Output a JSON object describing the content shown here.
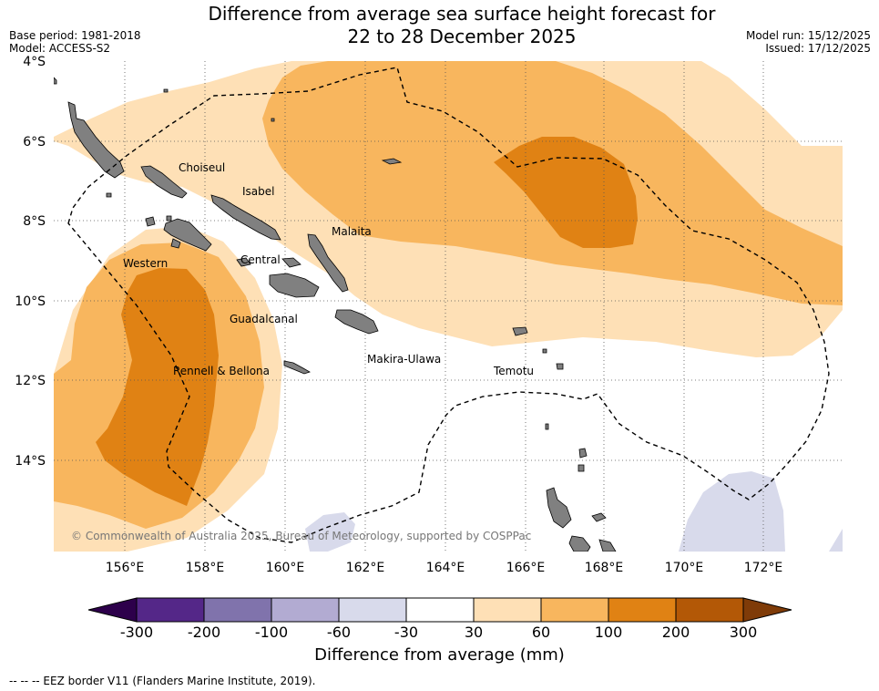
{
  "title": {
    "line1": "Difference from average sea surface height forecast for",
    "line2": "22 to 28 December 2025"
  },
  "meta": {
    "base_period": "Base period: 1981-2018",
    "model": "Model: ACCESS-S2",
    "model_run": "Model run: 15/12/2025",
    "issued": "Issued: 17/12/2025"
  },
  "map": {
    "lat_labels": [
      "4°S",
      "6°S",
      "8°S",
      "10°S",
      "12°S",
      "14°S"
    ],
    "lon_labels": [
      "156°E",
      "158°E",
      "160°E",
      "162°E",
      "164°E",
      "166°E",
      "168°E",
      "170°E",
      "172°E"
    ],
    "regions": [
      "Choiseul",
      "Isabel",
      "Malaita",
      "Western",
      "Central",
      "Guadalcanal",
      "Rennell & Bellona",
      "Makira-Ulawa",
      "Temotu"
    ],
    "copyright": "© Commonwealth of Australia 2025, Bureau of Meteorology, supported by COSPPac"
  },
  "colorbar": {
    "ticks": [
      "-300",
      "-200",
      "-100",
      "-60",
      "-30",
      "30",
      "60",
      "100",
      "200",
      "300"
    ],
    "colors": [
      "#542788",
      "#8073ac",
      "#b2abd2",
      "#d8daeb",
      "#ffffff",
      "#fee0b6",
      "#f8b65e",
      "#e08214",
      "#b35806"
    ],
    "under_color": "#2d004b",
    "over_color": "#7f3b08",
    "label": "Difference from average (mm)"
  },
  "footer": "-- -- -- EEZ border V11 (Flanders Marine Institute, 2019)."
}
